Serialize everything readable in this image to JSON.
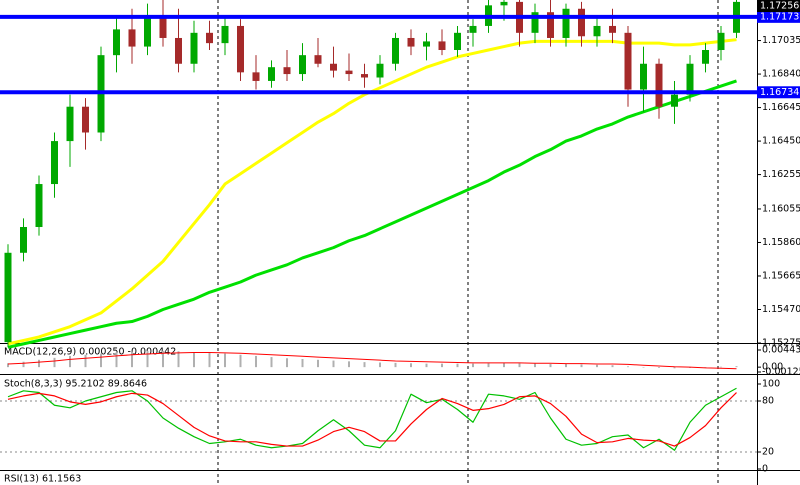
{
  "chart_data": [
    {
      "type": "candlestick",
      "open": [
        1.1528,
        1.158,
        1.1595,
        1.162,
        1.1645,
        1.1665,
        1.165,
        1.1695,
        1.171,
        1.17,
        1.1718,
        1.1705,
        1.169,
        1.1708,
        1.1702,
        1.1712,
        1.1685,
        1.168,
        1.1688,
        1.1684,
        1.1695,
        1.169,
        1.1686,
        1.1684,
        1.1682,
        1.169,
        1.1705,
        1.17,
        1.1703,
        1.1698,
        1.1708,
        1.1712,
        1.1724,
        1.1726,
        1.1708,
        1.172,
        1.1705,
        1.1722,
        1.1706,
        1.1712,
        1.1708,
        1.1675,
        1.169,
        1.1665,
        1.1672,
        1.169,
        1.1698,
        1.1708
      ],
      "high": [
        1.1585,
        1.16,
        1.1625,
        1.165,
        1.1672,
        1.167,
        1.17,
        1.1718,
        1.1722,
        1.1725,
        1.1728,
        1.1722,
        1.1715,
        1.1715,
        1.1718,
        1.1716,
        1.1695,
        1.1692,
        1.1698,
        1.1702,
        1.1705,
        1.17,
        1.1696,
        1.169,
        1.1695,
        1.1708,
        1.171,
        1.1708,
        1.171,
        1.1712,
        1.1716,
        1.1728,
        1.173,
        1.173,
        1.1725,
        1.173,
        1.1725,
        1.1726,
        1.1718,
        1.1722,
        1.1712,
        1.17,
        1.1693,
        1.168,
        1.1695,
        1.1702,
        1.1712,
        1.1728
      ],
      "low": [
        1.1525,
        1.1575,
        1.159,
        1.1612,
        1.163,
        1.164,
        1.1645,
        1.1685,
        1.169,
        1.1695,
        1.17,
        1.1685,
        1.1685,
        1.1698,
        1.1695,
        1.168,
        1.1675,
        1.1676,
        1.168,
        1.168,
        1.1688,
        1.1682,
        1.168,
        1.1676,
        1.1678,
        1.1686,
        1.1695,
        1.1692,
        1.1695,
        1.1694,
        1.17,
        1.1708,
        1.1715,
        1.17,
        1.1702,
        1.17,
        1.17,
        1.17,
        1.17,
        1.1702,
        1.1665,
        1.1662,
        1.1658,
        1.1655,
        1.1668,
        1.1685,
        1.1692,
        1.1705
      ],
      "close": [
        1.158,
        1.1595,
        1.162,
        1.1645,
        1.1665,
        1.165,
        1.1695,
        1.171,
        1.17,
        1.1718,
        1.1705,
        1.169,
        1.1708,
        1.1702,
        1.1712,
        1.1685,
        1.168,
        1.1688,
        1.1684,
        1.1695,
        1.169,
        1.1686,
        1.1684,
        1.1682,
        1.169,
        1.1705,
        1.17,
        1.1703,
        1.1698,
        1.1708,
        1.1712,
        1.1724,
        1.1726,
        1.1708,
        1.172,
        1.1705,
        1.1722,
        1.1706,
        1.1712,
        1.1708,
        1.1675,
        1.169,
        1.1665,
        1.1672,
        1.169,
        1.1698,
        1.1708,
        1.1726
      ],
      "up_color": "#00a800",
      "down_color": "#a52a2a",
      "moving_averages": [
        {
          "color": "#ffff00",
          "values": [
            1.1527,
            1.1529,
            1.1531,
            1.1534,
            1.1537,
            1.1541,
            1.1545,
            1.1552,
            1.1559,
            1.1567,
            1.1575,
            1.1586,
            1.1597,
            1.1608,
            1.162,
            1.1626,
            1.1632,
            1.1638,
            1.1644,
            1.165,
            1.1656,
            1.1661,
            1.1667,
            1.1672,
            1.1676,
            1.168,
            1.1684,
            1.1688,
            1.1691,
            1.1694,
            1.1696,
            1.1698,
            1.17,
            1.1702,
            1.1703,
            1.1703,
            1.1703,
            1.1703,
            1.1703,
            1.1703,
            1.1702,
            1.1702,
            1.1702,
            1.1701,
            1.1701,
            1.1702,
            1.1703,
            1.1704
          ]
        },
        {
          "color": "#00e000",
          "values": [
            1.1525,
            1.1527,
            1.1529,
            1.1531,
            1.1533,
            1.1535,
            1.1537,
            1.1539,
            1.154,
            1.1543,
            1.1547,
            1.155,
            1.1553,
            1.1557,
            1.156,
            1.1563,
            1.1567,
            1.157,
            1.1573,
            1.1577,
            1.158,
            1.1583,
            1.1587,
            1.159,
            1.1594,
            1.1598,
            1.1602,
            1.1606,
            1.161,
            1.1614,
            1.1618,
            1.1622,
            1.1627,
            1.1631,
            1.1636,
            1.164,
            1.1645,
            1.1648,
            1.1652,
            1.1655,
            1.1659,
            1.1662,
            1.1665,
            1.1668,
            1.1671,
            1.1674,
            1.1677,
            1.168
          ]
        }
      ],
      "hlines": [
        {
          "value": 1.17173,
          "color": "#0000ff"
        },
        {
          "value": 1.16734,
          "color": "#0000ff"
        }
      ],
      "last_price": 1.17256,
      "ylim": [
        1.15275,
        1.17271
      ],
      "yticks": [
        1.17035,
        {
          "value": 1.1684,
          "label": "1.16840"
        },
        1.16645,
        {
          "value": 1.1645,
          "label": "1.16450"
        },
        1.16255,
        1.16055,
        {
          "value": 1.1586,
          "label": "1.15860"
        },
        1.15665,
        {
          "value": 1.1547,
          "label": "1.15470"
        },
        1.15275
      ]
    },
    {
      "type": "bar",
      "title": "MACD(12,26,9) 0.000250 -0.000442",
      "values": [
        0.001,
        0.0014,
        0.0019,
        0.0024,
        0.0029,
        0.0032,
        0.0035,
        0.0038,
        0.004,
        0.0042,
        0.0042,
        0.0041,
        0.0039,
        0.0037,
        0.0035,
        0.0032,
        0.0029,
        0.0026,
        0.0023,
        0.0021,
        0.0019,
        0.0017,
        0.0015,
        0.0013,
        0.0012,
        0.0011,
        0.001,
        0.0009,
        0.0009,
        0.0009,
        0.0009,
        0.001,
        0.0011,
        0.001,
        0.0009,
        0.0008,
        0.0008,
        0.0007,
        0.0006,
        0.0005,
        0.0002,
        0,
        -0.0002,
        -0.0003,
        -0.0002,
        -0.0001,
        0.0001,
        0.00025
      ],
      "color": "#b0b0b0",
      "signal": {
        "color": "#ff0000",
        "values": [
          0.0008,
          0.001,
          0.0013,
          0.0016,
          0.002,
          0.0023,
          0.0026,
          0.0029,
          0.0032,
          0.0034,
          0.0036,
          0.0037,
          0.0038,
          0.0038,
          0.0037,
          0.0036,
          0.0034,
          0.0032,
          0.003,
          0.0028,
          0.0026,
          0.0024,
          0.0022,
          0.002,
          0.0018,
          0.0016,
          0.0015,
          0.0014,
          0.0013,
          0.0012,
          0.0011,
          0.0011,
          0.0011,
          0.0011,
          0.001,
          0.001,
          0.0009,
          0.0009,
          0.0008,
          0.0008,
          0.0007,
          0.0005,
          0.0003,
          0.0001,
          0,
          -0.0002,
          -0.0003,
          -0.0004
        ]
      },
      "ylim": [
        -0.001255,
        0.004431
      ],
      "yticks": [
        0.004431,
        {
          "value": 0,
          "label": "0.00"
        },
        -0.001255
      ]
    },
    {
      "type": "line",
      "title": "Stoch(8,3,3) 95.2102 89.8646",
      "series": [
        {
          "color": "#00c000",
          "values": [
            85,
            92,
            90,
            75,
            72,
            80,
            85,
            90,
            92,
            80,
            60,
            48,
            38,
            30,
            32,
            35,
            28,
            25,
            27,
            30,
            45,
            58,
            45,
            28,
            25,
            45,
            88,
            78,
            82,
            70,
            55,
            88,
            86,
            82,
            90,
            60,
            35,
            28,
            30,
            38,
            40,
            25,
            35,
            22,
            55,
            75,
            85,
            95
          ]
        },
        {
          "color": "#ff0000",
          "values": [
            82,
            86,
            89,
            86,
            79,
            76,
            79,
            85,
            89,
            87,
            77,
            63,
            49,
            39,
            33,
            32,
            32,
            29,
            27,
            27,
            34,
            44,
            49,
            44,
            33,
            33,
            53,
            70,
            83,
            77,
            69,
            71,
            76,
            85,
            86,
            77,
            62,
            41,
            31,
            32,
            36,
            34,
            33,
            27,
            37,
            51,
            72,
            89.9
          ]
        }
      ],
      "levels": [
        80,
        20
      ],
      "ylim": [
        0,
        100
      ],
      "yticks": [
        100,
        80,
        20,
        0
      ]
    },
    {
      "type": "line",
      "title": "RSI(13) 61.1563"
    }
  ]
}
